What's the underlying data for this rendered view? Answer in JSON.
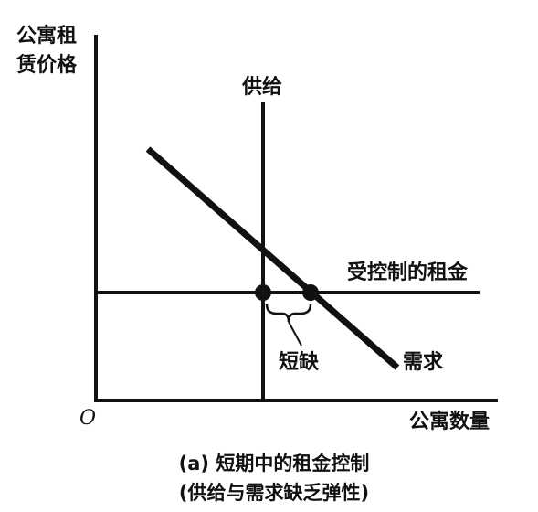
{
  "diagram": {
    "y_axis_label_line1": "公寓租",
    "y_axis_label_line2": "赁价格",
    "x_axis_label": "公寓数量",
    "origin_label": "O",
    "supply_label": "供给",
    "demand_label": "需求",
    "controlled_rent_label": "受控制的租金",
    "shortage_label": "短缺",
    "caption_line1": "(a) 短期中的租金控制",
    "caption_line2": "(供给与需求缺乏弹性)"
  }
}
